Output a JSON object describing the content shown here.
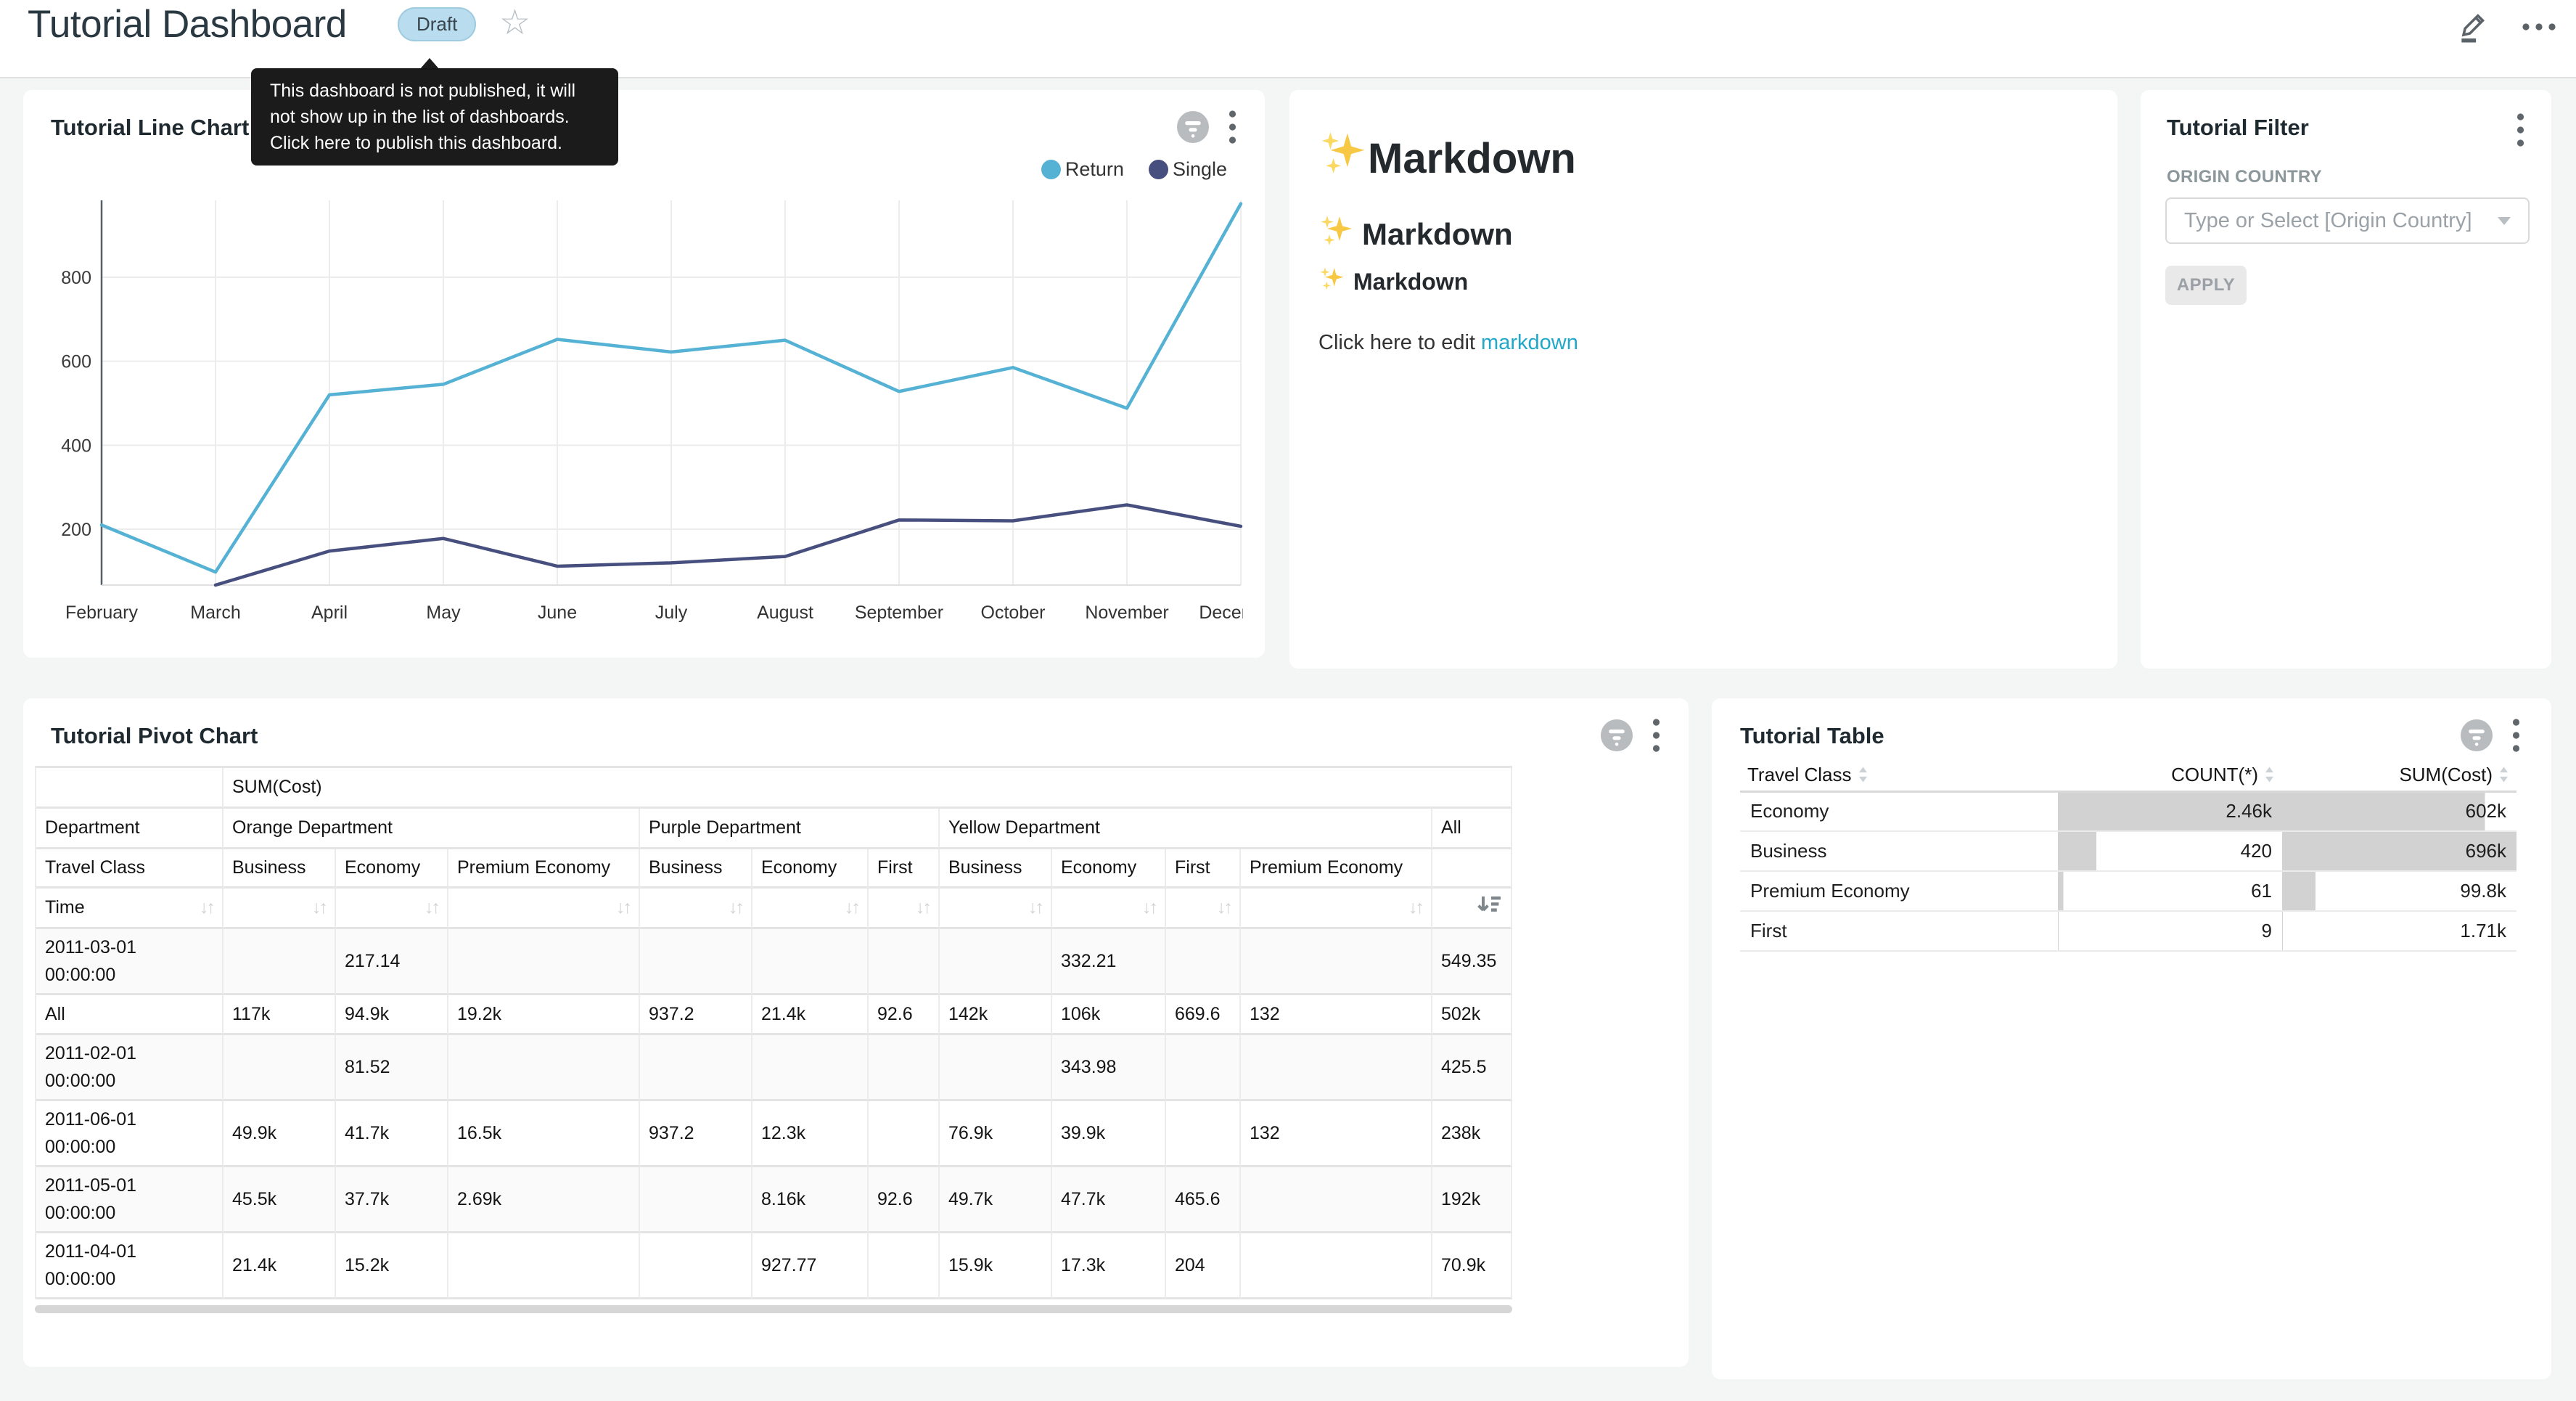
{
  "header": {
    "title": "Tutorial Dashboard",
    "status_badge": "Draft",
    "tooltip_lines": "This dashboard is not published, it will not show up in the list of dashboards. Click here to publish this dashboard."
  },
  "markdown_card": {
    "h1": "Markdown",
    "h2": "Markdown",
    "h3": "Markdown",
    "paragraph_prefix": "Click here to edit ",
    "link_text": "markdown"
  },
  "filter_card": {
    "title": "Tutorial Filter",
    "field_label": "ORIGIN COUNTRY",
    "select_placeholder": "Type or Select [Origin Country]",
    "apply_label": "APPLY"
  },
  "chart_data": [
    {
      "type": "line",
      "title": "Tutorial Line Chart",
      "x": [
        "February",
        "March",
        "April",
        "May",
        "June",
        "July",
        "August",
        "September",
        "October",
        "November",
        "December"
      ],
      "series": [
        {
          "name": "Return",
          "color": "#56b2d4",
          "values": [
            210,
            98,
            520,
            545,
            652,
            622,
            650,
            528,
            585,
            488,
            975
          ]
        },
        {
          "name": "Single",
          "color": "#474f7e",
          "values": [
            null,
            67,
            148,
            178,
            112,
            120,
            135,
            222,
            220,
            258,
            207
          ]
        }
      ],
      "ylim": [
        67,
        983
      ],
      "yticks": [
        200,
        400,
        600,
        800
      ],
      "grid": true,
      "legend_position": "top-right"
    },
    {
      "type": "table",
      "title": "Tutorial Pivot Chart",
      "measure_label": "SUM(Cost)",
      "department_header": "Department",
      "travel_class_header": "Travel Class",
      "time_header": "Time",
      "col_groups": [
        {
          "label": "Orange Department",
          "span": 3
        },
        {
          "label": "Purple Department",
          "span": 3
        },
        {
          "label": "Yellow Department",
          "span": 4
        },
        {
          "label": "All",
          "span": 1
        }
      ],
      "sub_cols": [
        "Business",
        "Economy",
        "Premium Economy",
        "Business",
        "Economy",
        "First",
        "Business",
        "Economy",
        "First",
        "Premium Economy",
        ""
      ],
      "rows": [
        {
          "label": "2011-03-01 00:00:00",
          "values": [
            "",
            "217.14",
            "",
            "",
            "",
            "",
            "",
            "332.21",
            "",
            "",
            "549.35"
          ]
        },
        {
          "label": "All",
          "values": [
            "117k",
            "94.9k",
            "19.2k",
            "937.2",
            "21.4k",
            "92.6",
            "142k",
            "106k",
            "669.6",
            "132",
            "502k"
          ]
        },
        {
          "label": "2011-02-01 00:00:00",
          "values": [
            "",
            "81.52",
            "",
            "",
            "",
            "",
            "",
            "343.98",
            "",
            "",
            "425.5"
          ]
        },
        {
          "label": "2011-06-01 00:00:00",
          "values": [
            "49.9k",
            "41.7k",
            "16.5k",
            "937.2",
            "12.3k",
            "",
            "76.9k",
            "39.9k",
            "",
            "132",
            "238k"
          ]
        },
        {
          "label": "2011-05-01 00:00:00",
          "values": [
            "45.5k",
            "37.7k",
            "2.69k",
            "",
            "8.16k",
            "92.6",
            "49.7k",
            "47.7k",
            "465.6",
            "",
            "192k"
          ]
        },
        {
          "label": "2011-04-01 00:00:00",
          "values": [
            "21.4k",
            "15.2k",
            "",
            "",
            "927.77",
            "",
            "15.9k",
            "17.3k",
            "204",
            "",
            "70.9k"
          ]
        }
      ]
    },
    {
      "type": "table",
      "title": "Tutorial Table",
      "columns": [
        "Travel Class",
        "COUNT(*)",
        "SUM(Cost)"
      ],
      "rows": [
        {
          "travel_class": "Economy",
          "count": "2.46k",
          "count_pct": 100,
          "sum": "602k",
          "sum_pct": 86.5
        },
        {
          "travel_class": "Business",
          "count": "420",
          "count_pct": 17.1,
          "sum": "696k",
          "sum_pct": 100
        },
        {
          "travel_class": "Premium Economy",
          "count": "61",
          "count_pct": 2.5,
          "sum": "99.8k",
          "sum_pct": 14.3
        },
        {
          "travel_class": "First",
          "count": "9",
          "count_pct": 0.4,
          "sum": "1.71k",
          "sum_pct": 0.25
        }
      ],
      "bar_color": "#d2d2d2"
    }
  ]
}
